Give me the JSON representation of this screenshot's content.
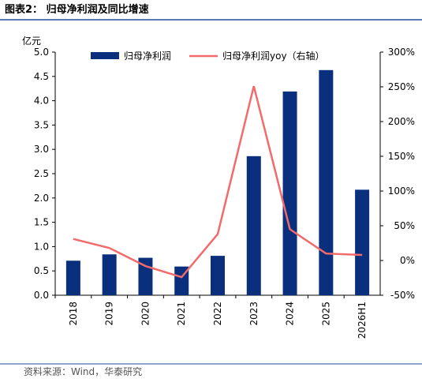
{
  "header": {
    "title": "图表2：  归母净利润及同比增速"
  },
  "chart_data": {
    "type": "bar_line",
    "y_label": "亿元",
    "categories": [
      "2018",
      "2019",
      "2020",
      "2021",
      "2022",
      "2023",
      "2024",
      "2025",
      "2026H1"
    ],
    "series": [
      {
        "name": "归母净利润",
        "color": "#0a2f7d",
        "values": [
          0.71,
          0.84,
          0.77,
          0.59,
          0.81,
          2.86,
          4.19,
          4.63,
          2.17
        ]
      },
      {
        "name": "归母净利润yoy（右轴）",
        "color": "#f26a6a",
        "axis": "y2",
        "values": [
          31,
          18,
          -8,
          -24,
          38,
          251,
          45,
          10,
          8
        ]
      }
    ],
    "ylim": [
      0,
      5
    ],
    "yticks": [
      {
        "value": 0,
        "label": "0.0"
      },
      0.5,
      {
        "value": 1,
        "label": "1.0"
      },
      1.5,
      {
        "value": 2,
        "label": "2.0"
      },
      2.5,
      {
        "value": 3,
        "label": "3.0"
      },
      3.5,
      {
        "value": 4,
        "label": "4.0"
      },
      4.5,
      {
        "value": 5,
        "label": "5.0"
      }
    ],
    "y2lim": [
      -50,
      300
    ],
    "y2ticks": [
      {
        "value": -50,
        "label": "-50%"
      },
      {
        "value": 0,
        "label": "0%"
      },
      {
        "value": 50,
        "label": "50%"
      },
      {
        "value": 100,
        "label": "100%"
      },
      {
        "value": 150,
        "label": "150%"
      },
      {
        "value": 200,
        "label": "200%"
      },
      {
        "value": 250,
        "label": "250%"
      },
      {
        "value": 300,
        "label": "300%"
      }
    ]
  },
  "footer": {
    "source": "资料来源：Wind，华泰研究"
  }
}
